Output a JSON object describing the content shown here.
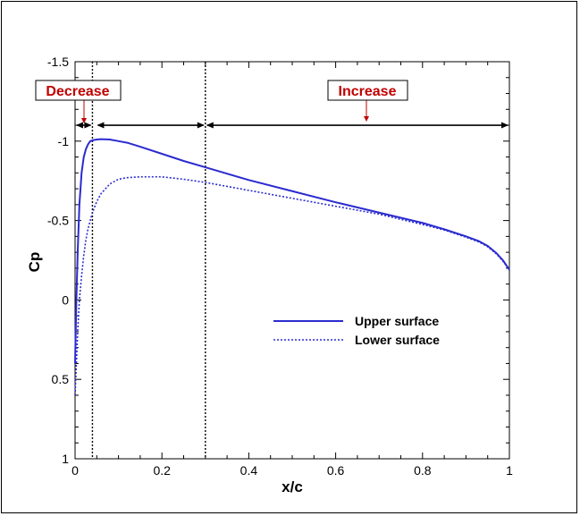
{
  "chart_data": {
    "type": "line",
    "xlabel": "x/c",
    "ylabel": "Cp",
    "xlim": [
      0,
      1
    ],
    "ylim": [
      1,
      -1.5
    ],
    "x_ticks": [
      0,
      0.2,
      0.4,
      0.6,
      0.8,
      1
    ],
    "x_tick_labels": [
      "0",
      "0.2",
      "0.4",
      "0.6",
      "0.8",
      "1"
    ],
    "y_ticks": [
      -1.5,
      -1,
      -0.5,
      0,
      0.5,
      1
    ],
    "y_tick_labels": [
      "-1.5",
      "-1",
      "-0.5",
      "0",
      "0.5",
      "1"
    ],
    "grid": false,
    "legend_position": "center-right",
    "series": [
      {
        "name": "Upper surface",
        "style": "solid",
        "color": "#2b2bd0",
        "x": [
          0,
          0.003,
          0.006,
          0.01,
          0.015,
          0.02,
          0.025,
          0.03,
          0.035,
          0.04,
          0.05,
          0.06,
          0.08,
          0.1,
          0.12,
          0.15,
          0.2,
          0.25,
          0.3,
          0.35,
          0.4,
          0.5,
          0.6,
          0.7,
          0.8,
          0.85,
          0.9,
          0.93,
          0.95,
          0.97,
          0.985,
          1.0
        ],
        "y": [
          0.4,
          0.0,
          -0.3,
          -0.6,
          -0.8,
          -0.9,
          -0.95,
          -0.98,
          -1.0,
          -1.005,
          -1.01,
          -1.012,
          -1.01,
          -1.0,
          -0.99,
          -0.965,
          -0.92,
          -0.875,
          -0.835,
          -0.795,
          -0.755,
          -0.685,
          -0.615,
          -0.55,
          -0.485,
          -0.445,
          -0.4,
          -0.37,
          -0.34,
          -0.295,
          -0.25,
          -0.19
        ]
      },
      {
        "name": "Lower surface",
        "style": "dotted",
        "color": "#2b2bd0",
        "x": [
          0,
          0.003,
          0.006,
          0.01,
          0.015,
          0.02,
          0.025,
          0.03,
          0.035,
          0.04,
          0.05,
          0.06,
          0.08,
          0.1,
          0.12,
          0.15,
          0.2,
          0.25,
          0.3,
          0.35,
          0.4,
          0.5,
          0.6,
          0.7,
          0.8,
          0.85,
          0.9,
          0.93,
          0.95,
          0.97,
          0.985,
          1.0
        ],
        "y": [
          0.6,
          0.4,
          0.2,
          0.0,
          -0.15,
          -0.28,
          -0.38,
          -0.45,
          -0.5,
          -0.55,
          -0.62,
          -0.67,
          -0.73,
          -0.76,
          -0.77,
          -0.775,
          -0.775,
          -0.76,
          -0.74,
          -0.715,
          -0.69,
          -0.64,
          -0.59,
          -0.54,
          -0.475,
          -0.44,
          -0.395,
          -0.365,
          -0.335,
          -0.29,
          -0.245,
          -0.19
        ]
      }
    ],
    "reference_lines": [
      {
        "x": 0.04,
        "style": "dotted"
      },
      {
        "x": 0.3,
        "style": "dotted"
      }
    ],
    "annotations": [
      {
        "text": "Decrease",
        "color": "#c00000"
      },
      {
        "text": "Increase",
        "color": "#c00000"
      }
    ]
  }
}
